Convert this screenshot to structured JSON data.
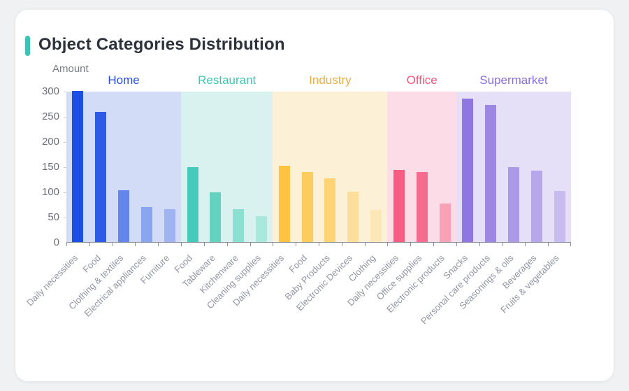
{
  "page": {
    "background": "#eff1f3"
  },
  "card": {
    "title": "Object Categories Distribution",
    "accent_color": "#3cc3b6"
  },
  "chart_data": {
    "type": "bar",
    "title": "Object Categories Distribution",
    "ylabel": "Amount",
    "xlabel": "",
    "ylim": [
      0,
      300
    ],
    "y_ticks": [
      0,
      50,
      100,
      150,
      200,
      250,
      300
    ],
    "grid": false,
    "legend_position": "group-labels-above-bands",
    "axis": {
      "y_text_color": "#6e7079",
      "x_text_color": "#9196a3",
      "line_color": "#8b909a",
      "x_label_rotation_deg": 45
    },
    "groups": [
      {
        "name": "Home",
        "label_color": "#2b50e1",
        "band_color": "#d3dcf7",
        "categories": [
          "Daily necessities",
          "Food",
          "Clothing & textiles",
          "Electrical appliances",
          "Furniture"
        ],
        "values": [
          300,
          258,
          103,
          70,
          65
        ],
        "bar_colors": [
          "#1c4fe3",
          "#2e5ae6",
          "#6385ec",
          "#8aa5f0",
          "#9fb2f2"
        ]
      },
      {
        "name": "Restaurant",
        "label_color": "#3ec8b2",
        "band_color": "#d9f2ef",
        "categories": [
          "Food",
          "Tableware",
          "Kitchenware",
          "Cleaning supplies"
        ],
        "values": [
          149,
          98,
          65,
          52
        ],
        "bar_colors": [
          "#45cabc",
          "#63d3c0",
          "#8ce0d2",
          "#a8e8dd"
        ]
      },
      {
        "name": "Industry",
        "label_color": "#ecaf45",
        "band_color": "#fcf1d6",
        "categories": [
          "Daily necessities",
          "Food",
          "Baby Products",
          "Electronic Devices",
          "Clothing"
        ],
        "values": [
          151,
          139,
          127,
          100,
          64
        ],
        "bar_colors": [
          "#fec343",
          "#fccc5e",
          "#fdd373",
          "#fddf9b",
          "#fee7b6"
        ]
      },
      {
        "name": "Office",
        "label_color": "#f4537b",
        "band_color": "#fcdce6",
        "categories": [
          "Daily necessities",
          "Office supplies",
          "Electronic products"
        ],
        "values": [
          143,
          139,
          76
        ],
        "bar_colors": [
          "#f75c83",
          "#f56c8e",
          "#f9a2b7"
        ]
      },
      {
        "name": "Supermarket",
        "label_color": "#8a6fde",
        "band_color": "#e5e0f7",
        "categories": [
          "Snacks",
          "Personal care products",
          "Seasonings & oils",
          "Beverages",
          "Fruits & vegetables"
        ],
        "values": [
          285,
          272,
          149,
          141,
          102
        ],
        "bar_colors": [
          "#9076e1",
          "#9d87e4",
          "#ac99e8",
          "#b7a6ea",
          "#c8bbf0"
        ]
      }
    ]
  }
}
